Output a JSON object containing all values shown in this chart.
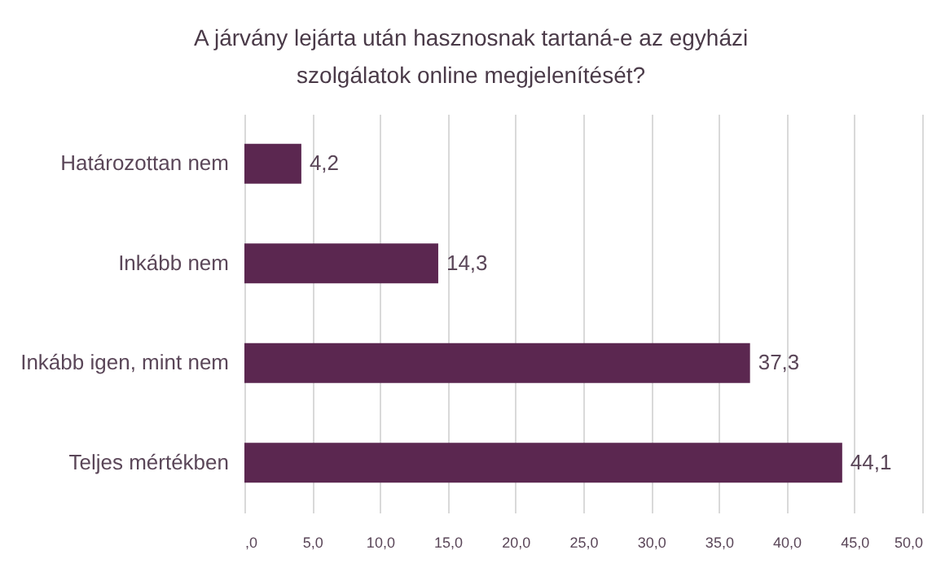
{
  "chart_data": {
    "type": "bar",
    "orientation": "horizontal",
    "title": "A járvány lejárta után hasznosnak tartaná-e az egyházi szolgálatok online megjelenítését?",
    "categories": [
      "Határozottan nem",
      "Inkább nem",
      "Inkább igen, mint nem",
      "Teljes mértékben"
    ],
    "values": [
      4.2,
      14.3,
      37.3,
      44.1
    ],
    "value_labels": [
      "4,2",
      "14,3",
      "37,3",
      "44,1"
    ],
    "color": "#5b2750",
    "xlim": [
      0,
      50
    ],
    "xticks": [
      {
        "value": 0,
        "label": ",0"
      },
      {
        "value": 5,
        "label": "5,0"
      },
      {
        "value": 10,
        "label": "10,0"
      },
      {
        "value": 15,
        "label": "15,0"
      },
      {
        "value": 20,
        "label": "20,0"
      },
      {
        "value": 25,
        "label": "25,0"
      },
      {
        "value": 30,
        "label": "30,0"
      },
      {
        "value": 35,
        "label": "35,0"
      },
      {
        "value": 40,
        "label": "40,0"
      },
      {
        "value": 45,
        "label": "45,0"
      },
      {
        "value": 50,
        "label": "50,0"
      }
    ],
    "grid": "x"
  }
}
